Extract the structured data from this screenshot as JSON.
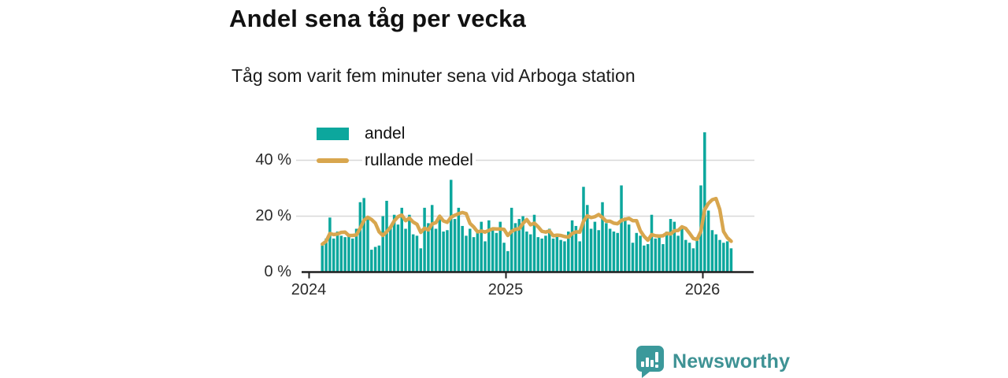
{
  "header": {
    "title": "Andel sena tåg per vecka",
    "subtitle": "Tåg som varit fem minuter sena vid Arboga station"
  },
  "legend": {
    "items": [
      {
        "label": "andel",
        "swatch": "bar-swatch"
      },
      {
        "label": "rullande medel",
        "swatch": "line-swatch"
      }
    ]
  },
  "footer": {
    "brand": "Newsworthy",
    "logo_icon": "bar-chart-speech-bubble-icon"
  },
  "colors": {
    "bar": "#0ca79d",
    "line": "#d8a64e",
    "grid": "#d8d8d8",
    "axis": "#1f1f1f",
    "text": "#1a1a1a",
    "logo": "#3b999b",
    "logo_text": "#3e9294"
  },
  "chart_data": {
    "type": "bar",
    "title": "Andel sena tåg per vecka",
    "subtitle": "Tåg som varit fem minuter sena vid Arboga station",
    "xlabel": "",
    "ylabel": "",
    "x_unit": "vecka",
    "y_unit": "%",
    "x_start": {
      "year": 2024,
      "week": 4
    },
    "x_end": {
      "year": 2026,
      "week": 8
    },
    "x_tick_labels": [
      "2024",
      "2025",
      "2026"
    ],
    "y_ticks": [
      0,
      20,
      40
    ],
    "y_tick_labels": [
      "0 %",
      "20 %",
      "40 %"
    ],
    "ylim": [
      0,
      52
    ],
    "grid": "horizontal",
    "legend_position": "top-left-inside",
    "rolling_window_weeks": 5,
    "series": [
      {
        "name": "andel",
        "type": "bar",
        "values": [
          10,
          12,
          19.5,
          12,
          14.5,
          13,
          12.5,
          13.5,
          12,
          15.5,
          25,
          26.5,
          19,
          8,
          9,
          9.5,
          20,
          25.5,
          16,
          20.5,
          17,
          23,
          15.5,
          20.5,
          13.5,
          13,
          8.5,
          23,
          17.5,
          24,
          15.5,
          20,
          14.5,
          15,
          33,
          19,
          23,
          16.5,
          13,
          15.5,
          12.5,
          14.5,
          18,
          11,
          18.5,
          15.5,
          14,
          18,
          10.5,
          7.5,
          23,
          17.5,
          19,
          20,
          14.5,
          13.5,
          20.5,
          12.5,
          12,
          13,
          15.5,
          12,
          13.5,
          11.5,
          11,
          14.5,
          18.5,
          16.5,
          11,
          30.5,
          24,
          15.5,
          18,
          15,
          25,
          17.5,
          15.5,
          14.5,
          14,
          31,
          19.5,
          17,
          10.5,
          14,
          13,
          9.5,
          10,
          20.5,
          12,
          12.5,
          10,
          14.5,
          19,
          18,
          13,
          16.5,
          11.5,
          10.5,
          8.5,
          11.5,
          31,
          50,
          22,
          15,
          13.5,
          11.5,
          10.5,
          11,
          8.5
        ]
      },
      {
        "name": "rullande medel",
        "type": "line",
        "values": [
          10,
          11,
          13.8,
          13.4,
          13.6,
          14.2,
          14.3,
          13.1,
          13.1,
          13.3,
          15.7,
          18.5,
          19.6,
          18.8,
          17.5,
          14.4,
          13.1,
          14.4,
          16,
          18.3,
          19.8,
          20.4,
          18.4,
          19.3,
          17.9,
          17.1,
          14.2,
          15.7,
          15.1,
          17.2,
          17.7,
          20,
          18.3,
          17.8,
          19.6,
          20.3,
          20.9,
          21.3,
          20.9,
          17.4,
          16.1,
          14.4,
          14.7,
          14.3,
          14.9,
          15.5,
          15.4,
          15.4,
          15.3,
          13.1,
          14.6,
          15.3,
          15.5,
          17.4,
          18.8,
          16.9,
          17.5,
          16.2,
          14.6,
          14.3,
          14.7,
          13,
          13.2,
          13.1,
          12.7,
          12.5,
          13.8,
          14.4,
          14.3,
          18.2,
          20.1,
          19.5,
          19.8,
          20.6,
          19.5,
          18.2,
          18.2,
          17.5,
          17.3,
          18.5,
          18.9,
          19.2,
          18.4,
          18.4,
          14.8,
          12.8,
          11.4,
          13.4,
          13,
          12.9,
          13,
          13.9,
          13.6,
          14.8,
          14.9,
          16.2,
          15.6,
          13.9,
          12,
          11.7,
          14.6,
          22.3,
          24.6,
          25.9,
          26.3,
          22.4,
          14.5,
          12.3,
          11
        ]
      }
    ]
  }
}
